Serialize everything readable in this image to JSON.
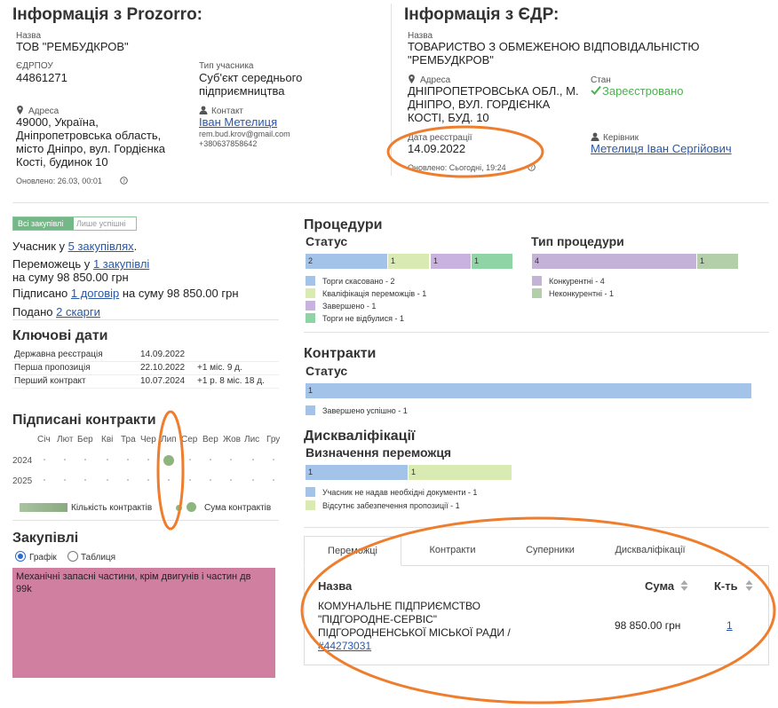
{
  "prozorro": {
    "title": "Інформація з Prozorro:",
    "name_label": "Назва",
    "name": "ТОВ \"РЕМБУДКРОВ\"",
    "edrpou_label": "ЄДРПОУ",
    "edrpou": "44861271",
    "type_label": "Тип учасника",
    "type": "Суб'єкт середнього підприємництва",
    "address_label": "Адреса",
    "address": "49000, Україна, Дніпропетровська область, місто Дніпро, вул. Гордієнка Кості, будинок 10",
    "contact_label": "Контакт",
    "contact_name": "Іван Метелиця",
    "contact_email": "rem.bud.krov@gmail.com",
    "contact_phone": "+380637858642",
    "updated": "Оновлено: 26.03, 00:01"
  },
  "edr": {
    "title": "Інформація з ЄДР:",
    "name_label": "Назва",
    "name": "ТОВАРИСТВО З ОБМЕЖЕНОЮ ВІДПОВІДАЛЬНІСТЮ \"РЕМБУДКРОВ\"",
    "address_label": "Адреса",
    "address": "ДНІПРОПЕТРОВСЬКА ОБЛ., М. ДНІПРО, ВУЛ. ГОРДІЄНКА КОСТІ, БУД. 10",
    "state_label": "Стан",
    "state": "Зареєстровано",
    "reg_label": "Дата реєстрації",
    "reg_date": "14.09.2022",
    "head_label": "Керівник",
    "head": "Метелиця Іван Сергійович",
    "updated": "Оновлено: Сьогодні, 19:24"
  },
  "filter": {
    "all": "Всі закупівлі",
    "success": "Лише успішні"
  },
  "summary": {
    "l1_pre": "Учасник у ",
    "l1_link": "5 закупівлях",
    "l1_post": ".",
    "l2_pre": "Переможець у ",
    "l2_link": "1 закупівлі",
    "l2_post": "на суму 98 850.00 грн",
    "l3_pre": "Підписано ",
    "l3_link": "1 договір",
    "l3_post": " на суму 98 850.00 грн",
    "l4_pre": "Подано ",
    "l4_link": "2 скарги"
  },
  "key_dates": {
    "title": "Ключові дати",
    "rows": [
      {
        "label": "Державна реєстрація",
        "date": "14.09.2022",
        "diff": ""
      },
      {
        "label": "Перша пропозиція",
        "date": "22.10.2022",
        "diff": "+1 міс. 9 д."
      },
      {
        "label": "Перший контракт",
        "date": "10.07.2024",
        "diff": "+1 р. 8 міс. 18 д."
      }
    ]
  },
  "signed": {
    "title": "Підписані контракти",
    "months": [
      "Січ",
      "Лют",
      "Бер",
      "Кві",
      "Тра",
      "Чер",
      "Лип",
      "Сер",
      "Вер",
      "Жов",
      "Лис",
      "Гру"
    ],
    "years": [
      "2024",
      "2025"
    ],
    "legend_count": "Кількість контрактів",
    "legend_sum": "Сума контрактів"
  },
  "purchases": {
    "title": "Закупівлі",
    "opt_chart": "Графік",
    "opt_table": "Таблиця",
    "tile_text": "Механічні запасні частини, крім двигунів і частин дв",
    "tile_value": "99k"
  },
  "procedures": {
    "title": "Процедури",
    "status_title": "Статус",
    "status_segments": [
      "2",
      "1",
      "1",
      "1"
    ],
    "status_legend": [
      "Торги скасовано - 2",
      "Кваліфікація переможців - 1",
      "Завершено - 1",
      "Торги не відбулися - 1"
    ],
    "type_title": "Тип процедури",
    "type_segments": [
      "4",
      "1"
    ],
    "type_legend": [
      "Конкурентні - 4",
      "Неконкурентні - 1"
    ]
  },
  "contracts": {
    "title": "Контракти",
    "status_title": "Статус",
    "segments": [
      "1"
    ],
    "legend": [
      "Завершено успішно - 1"
    ]
  },
  "disq": {
    "title": "Дискваліфікації",
    "sub_title": "Визначення переможця",
    "segments": [
      "1",
      "1"
    ],
    "legend": [
      "Учасник не надав необхідні документи - 1",
      "Відсутнє забезпечення пропозиції - 1"
    ]
  },
  "tabs": [
    "Переможці",
    "Контракти",
    "Суперники",
    "Дискваліфікації"
  ],
  "table": {
    "col_name": "Назва",
    "col_sum": "Сума",
    "col_count": "К-ть",
    "row_name": "КОМУНАЛЬНЕ ПІДПРИЄМСТВО \"ПІДГОРОДНЕ-СЕРВІС\" ПІДГОРОДНЕНСЬКОЇ МІСЬКОЇ РАДИ /",
    "row_code": "#44273031",
    "row_sum": "98 850.00 грн",
    "row_count": "1"
  },
  "colors": {
    "blue": "#a4c3e8",
    "lightgreen": "#d9eab3",
    "purple": "#c9b1e0",
    "green": "#8fd4a4",
    "lavender": "#c5b2d9",
    "sage": "#b2cfaa",
    "tile": "#d17fa0",
    "annotation": "#ee7d2d"
  }
}
